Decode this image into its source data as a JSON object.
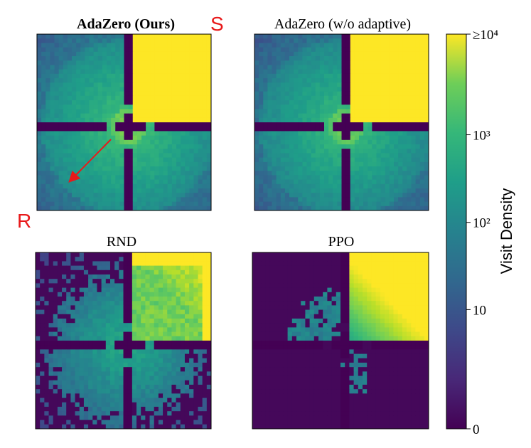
{
  "chart_data": {
    "type": "heatmap",
    "scale": "log",
    "colormap": "viridis",
    "colorbar": {
      "label": "Visit Density",
      "ticks": [
        {
          "value": 0,
          "label": "0"
        },
        {
          "value": 10,
          "label": "10"
        },
        {
          "value": 100,
          "label": "10²"
        },
        {
          "value": 1000,
          "label": "10³"
        },
        {
          "value": 10000,
          "label": "≥10⁴"
        }
      ],
      "range": [
        0,
        10000
      ]
    },
    "annotations": {
      "start_marker": "S",
      "reset_marker": "R",
      "arrow_color": "#e8191a"
    },
    "panels": [
      {
        "key": "adazero",
        "title": "AdaZero (Ours)",
        "title_bold": true,
        "goal_room_saturated": true,
        "coverage": "full"
      },
      {
        "key": "noadapt",
        "title": "AdaZero (w/o adaptive)",
        "title_bold": false,
        "goal_room_saturated": true,
        "coverage": "full"
      },
      {
        "key": "rnd",
        "title": "RND",
        "title_bold": false,
        "goal_room_saturated": false,
        "coverage": "partial"
      },
      {
        "key": "ppo",
        "title": "PPO",
        "title_bold": false,
        "goal_room_saturated": false,
        "coverage": "sparse"
      }
    ]
  },
  "colors": {
    "viridis_low": "#440154",
    "viridis_high": "#fde725",
    "marker": "#e8191a"
  }
}
